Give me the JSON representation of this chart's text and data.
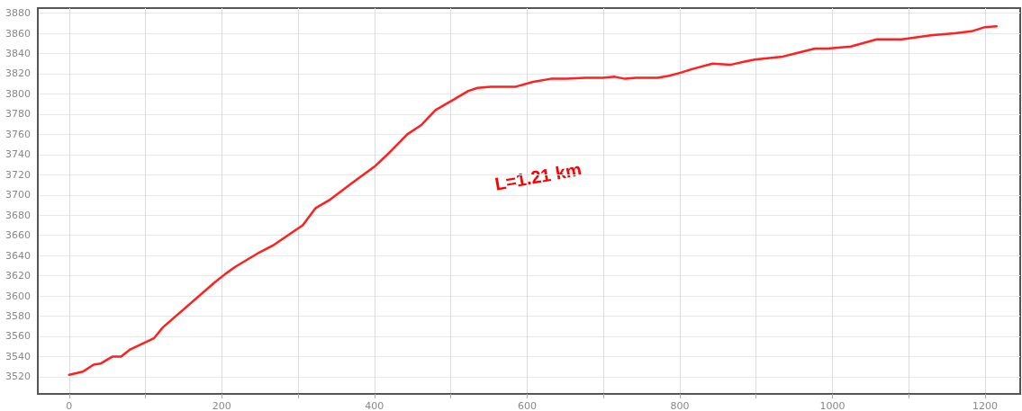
{
  "chart_data": {
    "type": "line",
    "annotations": [
      "L=1.21 km"
    ],
    "x": [
      0,
      18,
      32,
      41,
      57,
      68,
      80,
      111,
      123,
      190,
      205,
      218,
      249,
      267,
      306,
      323,
      341,
      371,
      400,
      421,
      443,
      461,
      480,
      505,
      523,
      535,
      552,
      584,
      608,
      631,
      652,
      676,
      699,
      715,
      728,
      743,
      771,
      786,
      801,
      818,
      843,
      867,
      885,
      898,
      935,
      951,
      977,
      994,
      1024,
      1058,
      1091,
      1110,
      1129,
      1160,
      1182,
      1199,
      1215
    ],
    "series": [
      {
        "color": "#ff2020",
        "values": [
          3522,
          3525,
          3532,
          3533,
          3540,
          3540,
          3547,
          3558,
          3569,
          3613,
          3622,
          3629,
          3643,
          3650,
          3670,
          3687,
          3695,
          3712,
          3728,
          3743,
          3760,
          3769,
          3784,
          3795,
          3803,
          3806,
          3807,
          3807,
          3812,
          3815,
          3815,
          3816,
          3816,
          3817,
          3815,
          3816,
          3816,
          3818,
          3821,
          3825,
          3830,
          3829,
          3832,
          3834,
          3837,
          3840,
          3845,
          3845,
          3847,
          3854,
          3854,
          3856,
          3858,
          3860,
          3862,
          3866,
          3867
        ]
      }
    ],
    "xlim": [
      -41,
      1246
    ],
    "ylim": [
      3503,
      3885
    ],
    "xticks": [
      0,
      {
        "value": 100,
        "label": null
      },
      200,
      {
        "value": 300,
        "label": null
      },
      400,
      {
        "value": 500,
        "label": null
      },
      600,
      {
        "value": 700,
        "label": null
      },
      800,
      {
        "value": 900,
        "label": null
      },
      1000,
      {
        "value": 1100,
        "label": null
      },
      1200
    ],
    "yticks": [
      3520,
      3540,
      3560,
      3580,
      3600,
      3620,
      3640,
      3660,
      3680,
      3700,
      3720,
      3740,
      3760,
      3780,
      3800,
      3820,
      3840,
      3860,
      3880
    ],
    "grid": true,
    "marker": "none",
    "line_style": "solid"
  }
}
